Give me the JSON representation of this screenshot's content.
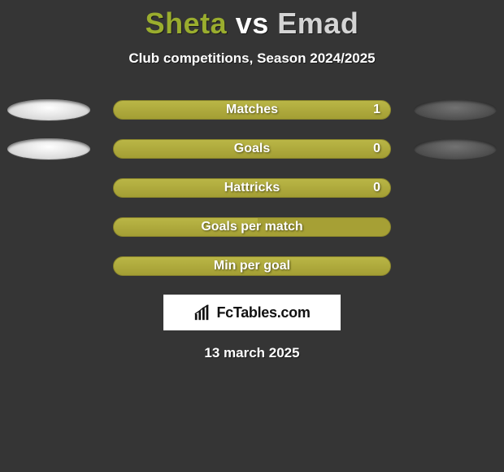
{
  "header": {
    "player1": "Sheta",
    "vs": "vs",
    "player2": "Emad",
    "player1_color": "#9aad2e",
    "player2_color": "#d4d4d4",
    "subtitle": "Club competitions, Season 2024/2025"
  },
  "stats": {
    "bar_background": "#a6a035",
    "bar_fill": "#b2ad3e",
    "rows": [
      {
        "label": "Matches",
        "value_text": "1",
        "fill_pct": 100,
        "show_left_pill": true,
        "show_right_pill": true,
        "show_value": true
      },
      {
        "label": "Goals",
        "value_text": "0",
        "fill_pct": 100,
        "show_left_pill": true,
        "show_right_pill": true,
        "show_value": true
      },
      {
        "label": "Hattricks",
        "value_text": "0",
        "fill_pct": 100,
        "show_left_pill": false,
        "show_right_pill": false,
        "show_value": true
      },
      {
        "label": "Goals per match",
        "value_text": "",
        "fill_pct": 52,
        "show_left_pill": false,
        "show_right_pill": false,
        "show_value": false
      },
      {
        "label": "Min per goal",
        "value_text": "",
        "fill_pct": 100,
        "show_left_pill": false,
        "show_right_pill": false,
        "show_value": false
      }
    ]
  },
  "footer": {
    "logo_text": "FcTables.com",
    "date": "13 march 2025"
  },
  "palette": {
    "background": "#353535",
    "text": "#ffffff"
  }
}
